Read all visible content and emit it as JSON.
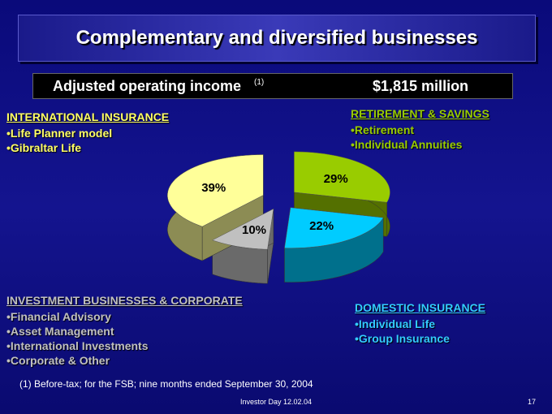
{
  "title": "Complementary and diversified businesses",
  "income_bar": {
    "label": "Adjusted operating income",
    "note": "(1)",
    "amount": "$1,815 million"
  },
  "chart_data": {
    "type": "pie",
    "categories": [
      "RETIREMENT & SAVINGS",
      "DOMESTIC INSURANCE",
      "INVESTMENT BUSINESSES & CORPORATE",
      "INTERNATIONAL INSURANCE"
    ],
    "values": [
      29,
      22,
      10,
      39
    ],
    "value_labels": [
      "29%",
      "22%",
      "10%",
      "39%"
    ],
    "colors": [
      "#99cc00",
      "#00ccff",
      "#c0c0c0",
      "#ffff99"
    ]
  },
  "groups": [
    {
      "items": [
        "•Retirement",
        "•Individual Annuities"
      ]
    },
    {
      "items": [
        "•Individual Life",
        "•Group Insurance"
      ]
    },
    {
      "items": [
        "•Financial Advisory",
        "•Asset Management",
        "•International Investments",
        "•Corporate & Other"
      ]
    },
    {
      "items": [
        "•Life Planner model",
        "•Gibraltar Life"
      ]
    }
  ],
  "footnote": "(1) Before-tax; for the FSB; nine months ended September 30, 2004",
  "footer": "Investor Day 12.02.04",
  "page_number": "17"
}
